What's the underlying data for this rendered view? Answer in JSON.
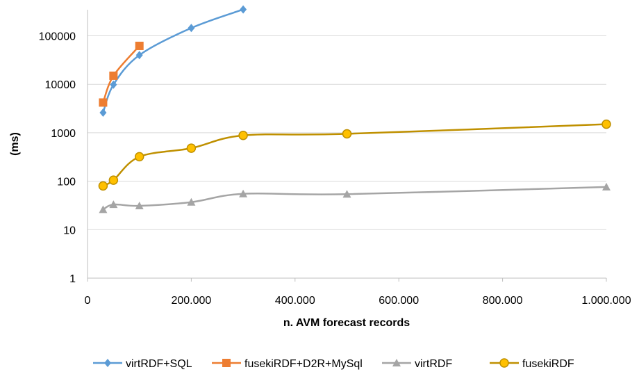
{
  "chart_data": {
    "type": "scatter",
    "xlabel": "n. AVM forecast records",
    "ylabel": "(ms)",
    "x_scale": "linear",
    "y_scale": "log",
    "xlim": [
      0,
      1000000
    ],
    "ylim": [
      1,
      500000
    ],
    "x_ticks": [
      0,
      200000,
      400000,
      600000,
      800000,
      1000000
    ],
    "x_tick_labels": [
      "0",
      "200.000",
      "400.000",
      "600.000",
      "800.000",
      "1.000.000"
    ],
    "y_ticks": [
      1,
      10,
      100,
      1000,
      10000,
      100000
    ],
    "y_tick_labels": [
      "1",
      "10",
      "100",
      "1000",
      "10000",
      "100000"
    ],
    "grid": "horizontal",
    "smooth_lines": true,
    "legend_position": "bottom",
    "series": [
      {
        "name": "virtRDF+SQL",
        "color": "#5B9BD5",
        "marker": "diamond",
        "x": [
          30000,
          50000,
          100000,
          200000,
          300000
        ],
        "y": [
          2600,
          9800,
          40000,
          145000,
          350000
        ]
      },
      {
        "name": "fusekiRDF+D2R+MySql",
        "color": "#ED7D31",
        "marker": "square",
        "x": [
          30000,
          50000,
          100000
        ],
        "y": [
          4200,
          15000,
          62000
        ]
      },
      {
        "name": "virtRDF",
        "color": "#A5A5A5",
        "marker": "triangle",
        "x": [
          30000,
          50000,
          100000,
          200000,
          300000,
          500000,
          1000000
        ],
        "y": [
          26,
          33,
          31,
          37,
          55,
          54,
          76
        ]
      },
      {
        "name": "fusekiRDF",
        "color": "#BF9000",
        "marker": "circle",
        "marker_fill": "#FFC000",
        "x": [
          30000,
          50000,
          100000,
          200000,
          300000,
          500000,
          1000000
        ],
        "y": [
          80,
          105,
          320,
          480,
          880,
          950,
          1500
        ]
      }
    ]
  }
}
